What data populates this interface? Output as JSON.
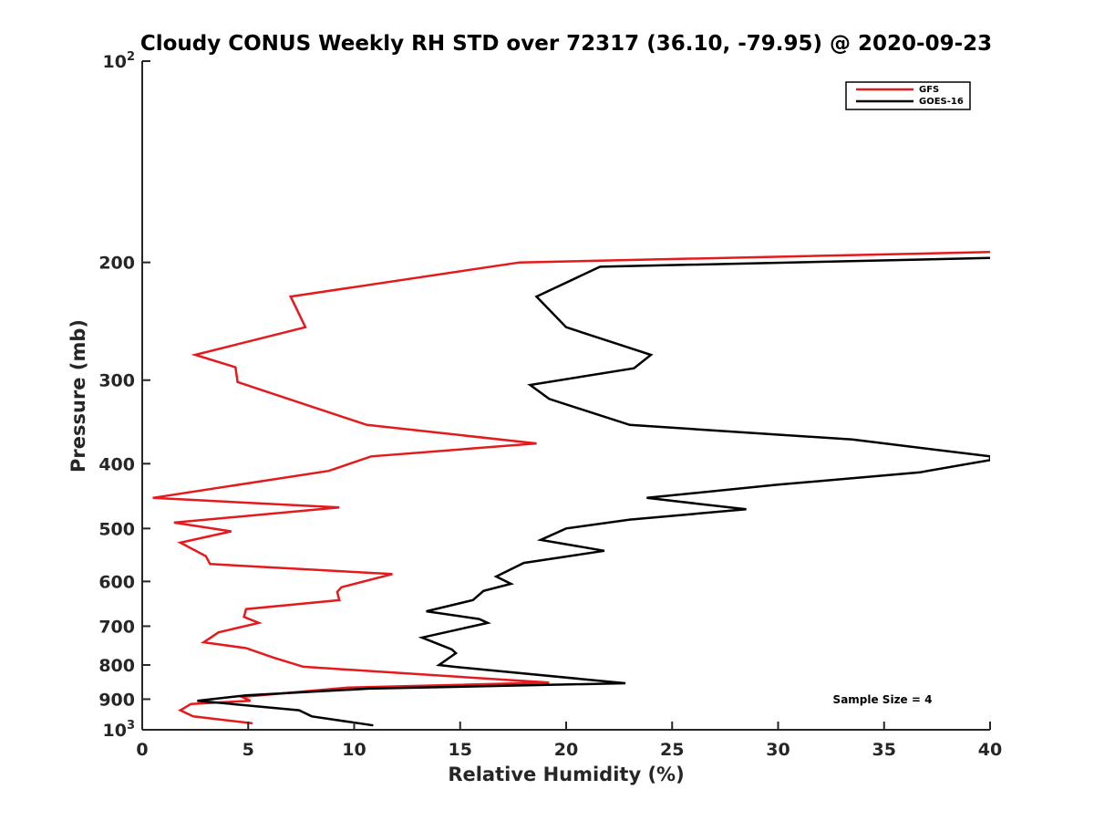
{
  "chart_data": {
    "type": "line",
    "title": "Cloudy CONUS Weekly RH STD over 72317 (36.10, -79.95) @ 2020-09-23",
    "xlabel": "Relative Humidity (%)",
    "ylabel": "Pressure (mb)",
    "xlim": [
      0,
      40
    ],
    "ylim": [
      100,
      1000
    ],
    "y_scale": "log",
    "y_reversed": true,
    "grid": false,
    "legend_position": "top-right",
    "x_ticks": [
      "0",
      "5",
      "10",
      "15",
      "20",
      "25",
      "30",
      "35",
      "40"
    ],
    "y_ticks": [
      {
        "value": 100,
        "base": "10",
        "exp": "2"
      },
      {
        "value": 200,
        "label": "200"
      },
      {
        "value": 300,
        "label": "300"
      },
      {
        "value": 400,
        "label": "400"
      },
      {
        "value": 500,
        "label": "500"
      },
      {
        "value": 600,
        "label": "600"
      },
      {
        "value": 700,
        "label": "700"
      },
      {
        "value": 800,
        "label": "800"
      },
      {
        "value": 900,
        "label": "900"
      },
      {
        "value": 1000,
        "base": "10",
        "exp": "3"
      }
    ],
    "series": [
      {
        "name": "GFS",
        "color": "#e41a1c",
        "points": [
          [
            40,
            193
          ],
          [
            17.8,
            200
          ],
          [
            7.0,
            225
          ],
          [
            7.7,
            250
          ],
          [
            2.5,
            275
          ],
          [
            4.4,
            287
          ],
          [
            4.5,
            302
          ],
          [
            10.6,
            350
          ],
          [
            18.6,
            373
          ],
          [
            10.8,
            390
          ],
          [
            8.8,
            410
          ],
          [
            0.5,
            450
          ],
          [
            9.3,
            465
          ],
          [
            1.5,
            490
          ],
          [
            4.2,
            505
          ],
          [
            1.8,
            525
          ],
          [
            3.0,
            550
          ],
          [
            3.2,
            565
          ],
          [
            11.8,
            585
          ],
          [
            9.4,
            612
          ],
          [
            9.2,
            622
          ],
          [
            9.3,
            640
          ],
          [
            4.9,
            660
          ],
          [
            4.8,
            678
          ],
          [
            5.5,
            692
          ],
          [
            3.6,
            715
          ],
          [
            2.9,
            740
          ],
          [
            4.9,
            755
          ],
          [
            6.2,
            780
          ],
          [
            7.6,
            805
          ],
          [
            19.2,
            850
          ],
          [
            9.7,
            865
          ],
          [
            4.7,
            893
          ],
          [
            5.1,
            905
          ],
          [
            2.3,
            915
          ],
          [
            1.8,
            935
          ],
          [
            2.4,
            955
          ],
          [
            5.2,
            978
          ]
        ]
      },
      {
        "name": "GOES-16",
        "color": "#000000",
        "points": [
          [
            40,
            197
          ],
          [
            21.6,
            203
          ],
          [
            18.6,
            225
          ],
          [
            20.0,
            250
          ],
          [
            24.0,
            275
          ],
          [
            23.2,
            288
          ],
          [
            18.3,
            305
          ],
          [
            19.2,
            320
          ],
          [
            23.0,
            350
          ],
          [
            33.5,
            368
          ],
          [
            40,
            390
          ],
          [
            40,
            395
          ],
          [
            36.7,
            412
          ],
          [
            30.0,
            430
          ],
          [
            23.8,
            450
          ],
          [
            28.5,
            468
          ],
          [
            23.0,
            485
          ],
          [
            20.0,
            500
          ],
          [
            18.8,
            520
          ],
          [
            21.8,
            540
          ],
          [
            18.0,
            563
          ],
          [
            16.7,
            590
          ],
          [
            17.4,
            605
          ],
          [
            16.1,
            620
          ],
          [
            15.6,
            640
          ],
          [
            13.4,
            665
          ],
          [
            15.9,
            683
          ],
          [
            16.3,
            692
          ],
          [
            13.2,
            728
          ],
          [
            14.6,
            758
          ],
          [
            14.8,
            768
          ],
          [
            14.0,
            800
          ],
          [
            14.7,
            805
          ],
          [
            22.8,
            852
          ],
          [
            10.7,
            868
          ],
          [
            4.9,
            888
          ],
          [
            2.6,
            905
          ],
          [
            7.4,
            935
          ],
          [
            8.0,
            955
          ],
          [
            10.9,
            985
          ]
        ]
      }
    ],
    "annotations": [
      {
        "text": "Sample Size = 4"
      }
    ]
  }
}
